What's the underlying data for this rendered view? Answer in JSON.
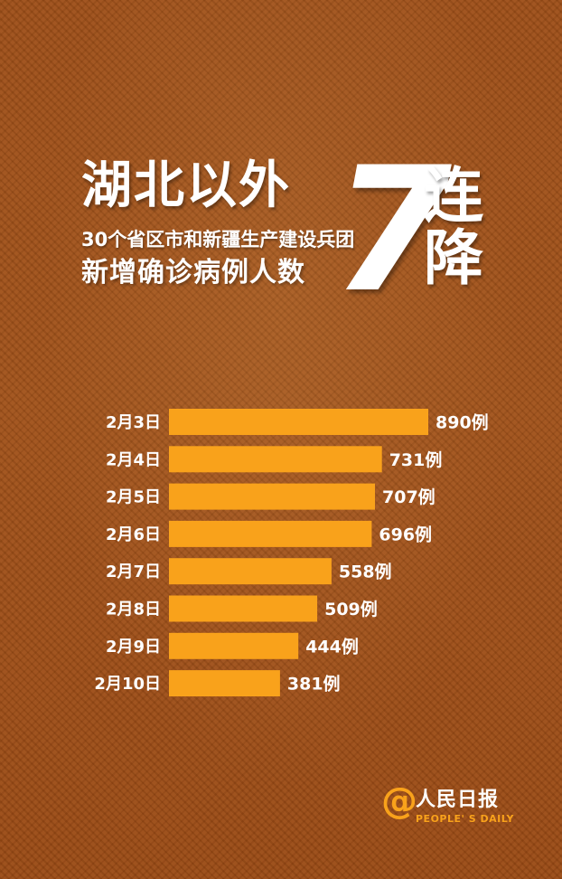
{
  "title": {
    "main": "湖北以外",
    "sub1": "30个省区市和新疆生产建设兵团",
    "sub2": "新增确诊病例人数",
    "big_number": "7",
    "vertical_chars": [
      "连",
      "降"
    ]
  },
  "chart_data": {
    "type": "bar",
    "orientation": "horizontal",
    "categories": [
      "2月3日",
      "2月4日",
      "2月5日",
      "2月6日",
      "2月7日",
      "2月8日",
      "2月9日",
      "2月10日"
    ],
    "values": [
      890,
      731,
      707,
      696,
      558,
      509,
      444,
      381
    ],
    "value_labels": [
      "890例",
      "731例",
      "707例",
      "696例",
      "558例",
      "509例",
      "444例",
      "381例"
    ],
    "bar_color": "#f9a21b",
    "xlim": [
      0,
      890
    ],
    "grid": false,
    "legend": "none"
  },
  "logo": {
    "at_symbol": "@",
    "cn": "人民日报",
    "en": "PEOPLE' S DAILY"
  },
  "colors": {
    "background": "#9a4c16",
    "accent": "#f9a21b",
    "text": "#ffffff"
  }
}
